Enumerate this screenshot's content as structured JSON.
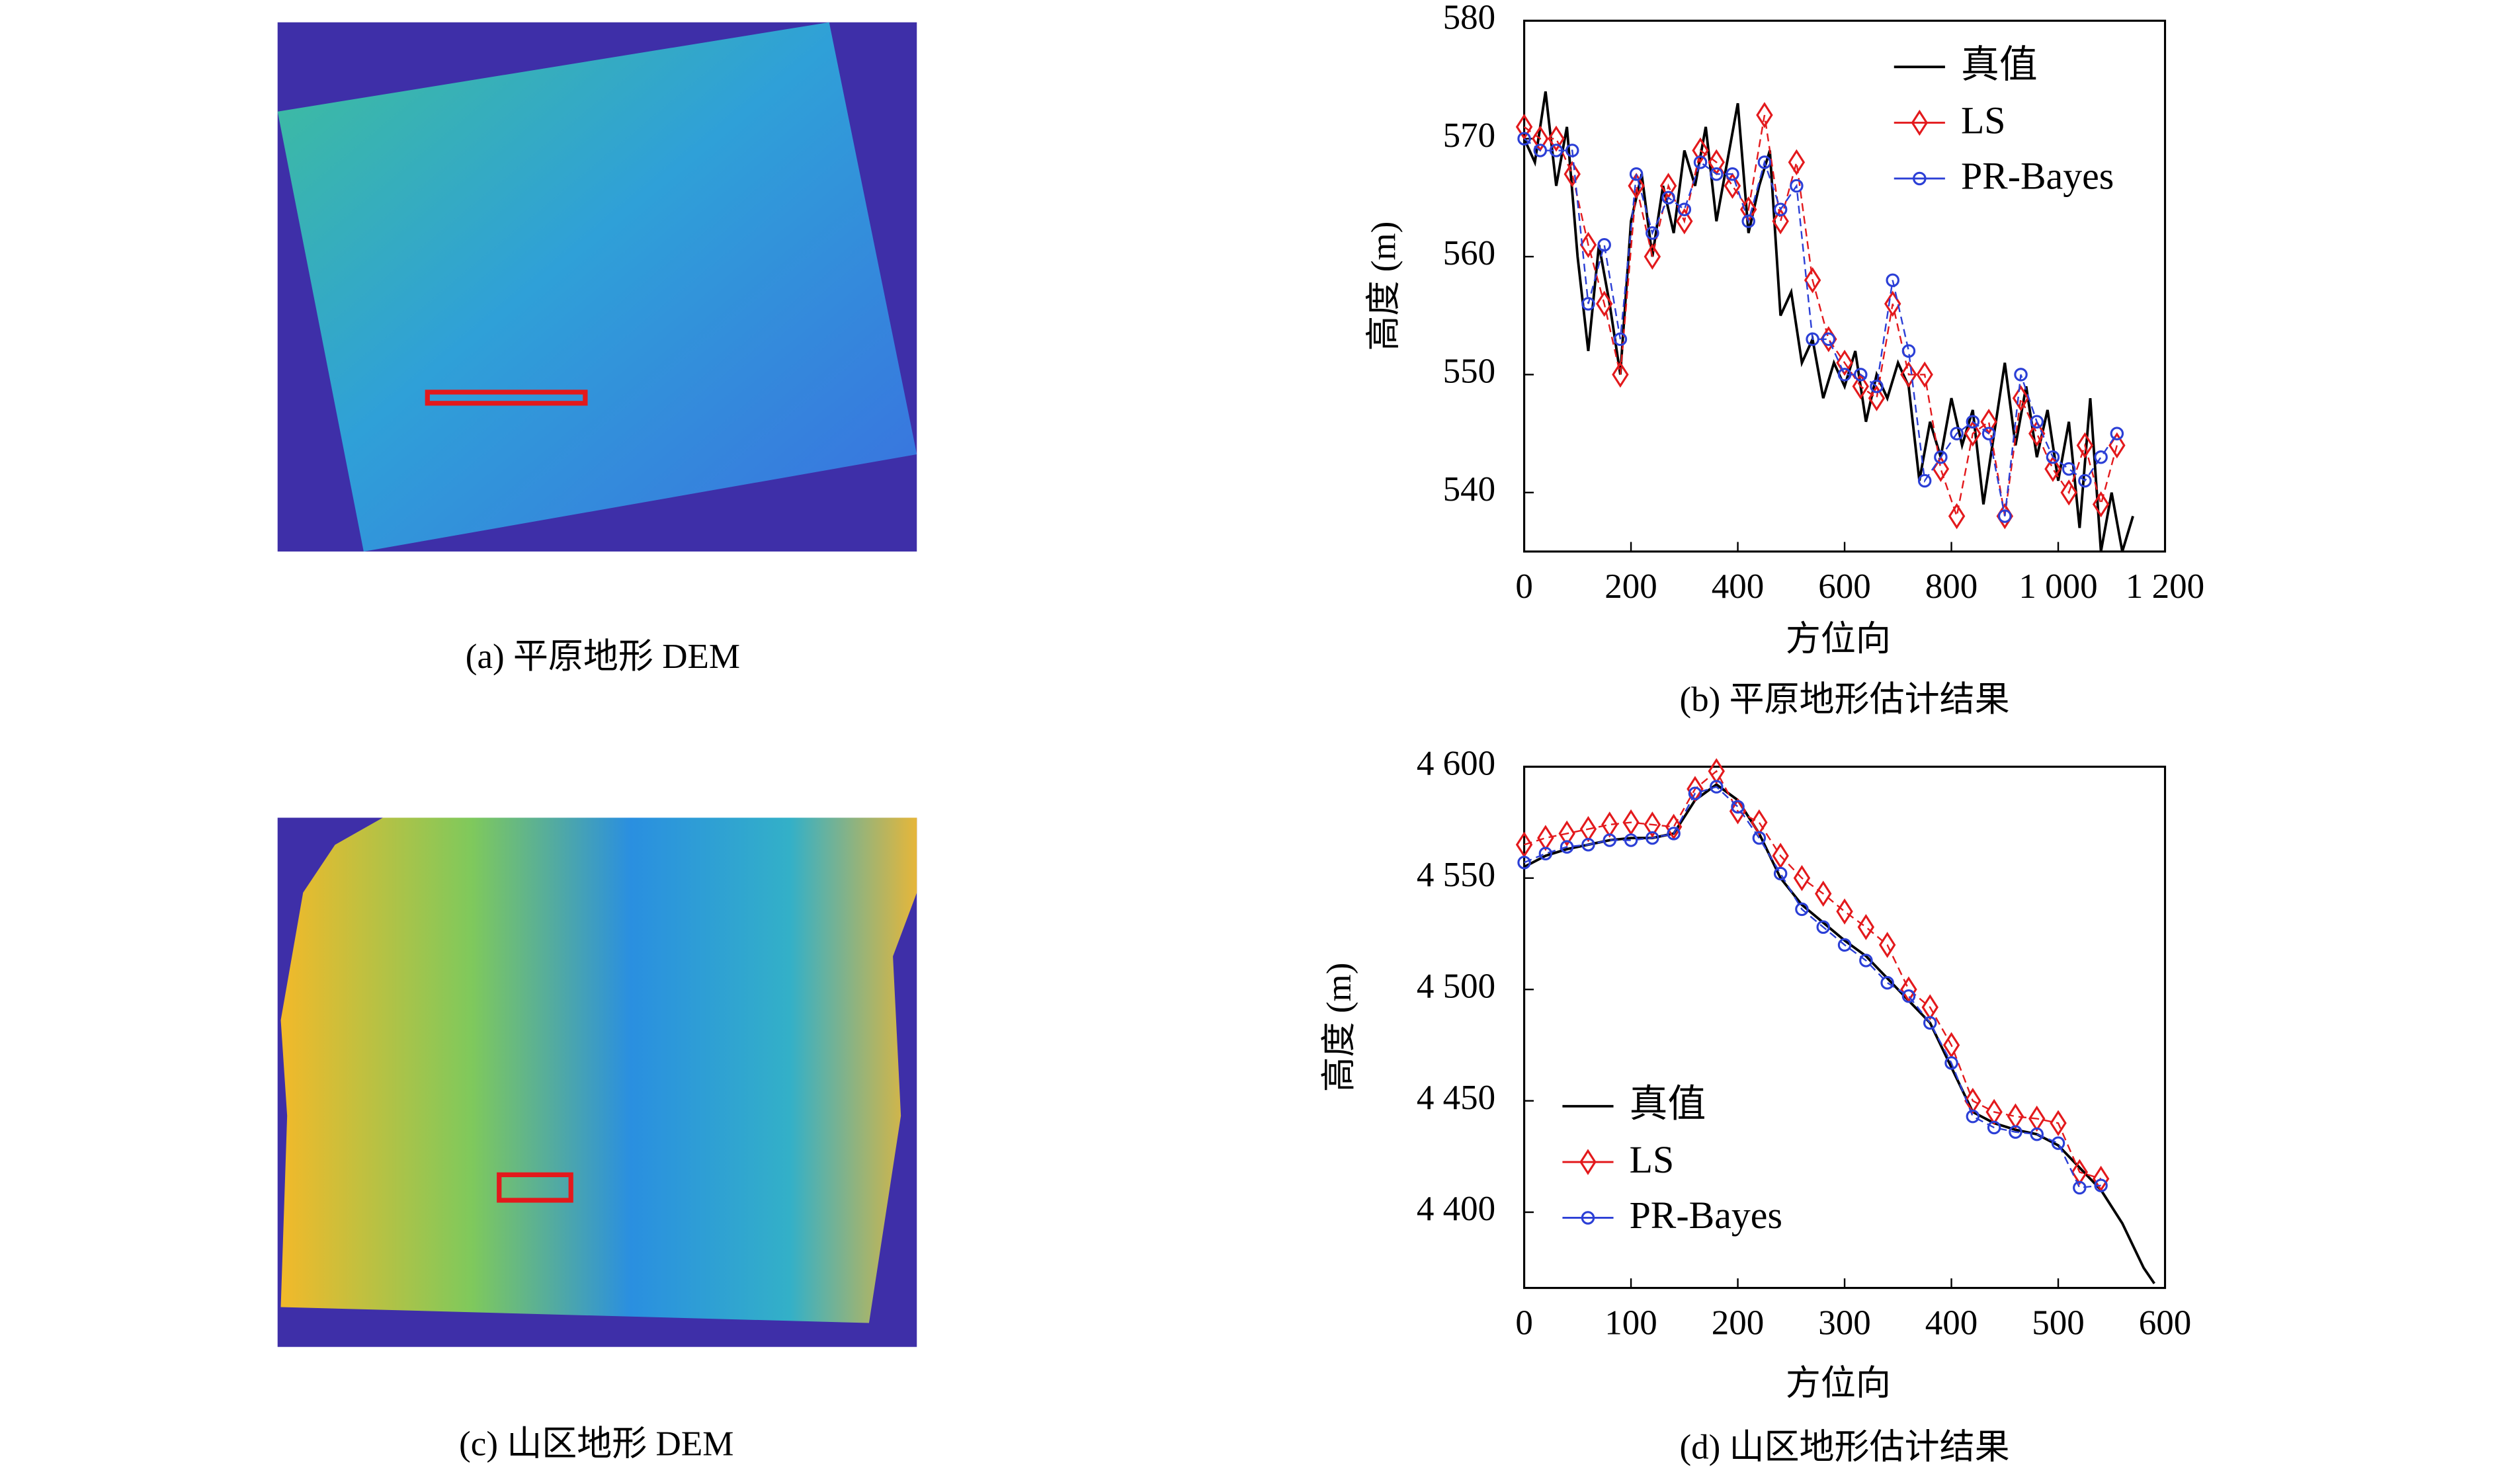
{
  "figures": [
    {
      "caption": "(a) 平原地形 DEM"
    },
    {
      "caption": "(c) 山区地形 DEM"
    }
  ],
  "chart_data": [
    {
      "type": "line",
      "title": "(b) 平原地形估计结果",
      "x_label": "方位向",
      "y_label": "高度 (m)",
      "xlim": [
        0,
        1200
      ],
      "ylim": [
        535,
        580
      ],
      "xticks": [
        0,
        200,
        400,
        600,
        800,
        {
          "value": 1000,
          "label": "1 000"
        },
        {
          "value": 1200,
          "label": "1 200"
        }
      ],
      "yticks": [
        540,
        550,
        560,
        570,
        580
      ],
      "legend": "upper right",
      "series": [
        {
          "name": "真值",
          "color": "#000000",
          "marker": "none",
          "linestyle": "solid",
          "x": [
            0,
            20,
            40,
            60,
            80,
            100,
            120,
            140,
            160,
            180,
            200,
            220,
            240,
            260,
            280,
            300,
            320,
            340,
            360,
            380,
            400,
            420,
            440,
            460,
            480,
            500,
            520,
            540,
            560,
            580,
            600,
            620,
            640,
            660,
            680,
            700,
            720,
            740,
            760,
            780,
            800,
            820,
            840,
            860,
            880,
            900,
            920,
            940,
            960,
            980,
            1000,
            1020,
            1040,
            1060,
            1080,
            1100,
            1120,
            1140
          ],
          "values": [
            570,
            568,
            574,
            566,
            571,
            560,
            552,
            561,
            556,
            550,
            563,
            567,
            560,
            566,
            562,
            569,
            566,
            571,
            563,
            568,
            573,
            562,
            566,
            569,
            555,
            557,
            551,
            553,
            548,
            551,
            549,
            552,
            546,
            550,
            548,
            551,
            549,
            541,
            546,
            543,
            548,
            544,
            547,
            539,
            545,
            551,
            544,
            549,
            543,
            547,
            541,
            546,
            537,
            548,
            535,
            540,
            535,
            538
          ]
        },
        {
          "name": "LS",
          "color": "#e3191c",
          "marker": "diamond",
          "linestyle": "dashed",
          "x": [
            0,
            30,
            60,
            90,
            120,
            150,
            180,
            210,
            240,
            270,
            300,
            330,
            360,
            390,
            420,
            450,
            480,
            510,
            540,
            570,
            600,
            630,
            660,
            690,
            720,
            750,
            780,
            810,
            840,
            870,
            900,
            930,
            960,
            990,
            1020,
            1050,
            1080,
            1110
          ],
          "values": [
            571,
            570,
            570,
            567,
            561,
            556,
            550,
            566,
            560,
            566,
            563,
            569,
            568,
            566,
            564,
            572,
            563,
            568,
            558,
            553,
            551,
            549,
            548,
            556,
            550,
            550,
            542,
            538,
            545,
            546,
            538,
            548,
            545,
            542,
            540,
            544,
            539,
            544
          ]
        },
        {
          "name": "PR-Bayes",
          "color": "#2b3fd6",
          "marker": "circle",
          "linestyle": "dashed",
          "x": [
            0,
            30,
            60,
            90,
            120,
            150,
            180,
            210,
            240,
            270,
            300,
            330,
            360,
            390,
            420,
            450,
            480,
            510,
            540,
            570,
            600,
            630,
            660,
            690,
            720,
            750,
            780,
            810,
            840,
            870,
            900,
            930,
            960,
            990,
            1020,
            1050,
            1080,
            1110
          ],
          "values": [
            570,
            569,
            569,
            569,
            556,
            561,
            553,
            567,
            562,
            565,
            564,
            568,
            567,
            567,
            563,
            568,
            564,
            566,
            553,
            553,
            550,
            550,
            549,
            558,
            552,
            541,
            543,
            545,
            546,
            545,
            538,
            550,
            546,
            543,
            542,
            541,
            543,
            545
          ]
        }
      ]
    },
    {
      "type": "line",
      "title": "(d) 山区地形估计结果",
      "x_label": "方位向",
      "y_label": "高度 (m)",
      "xlim": [
        0,
        600
      ],
      "ylim": [
        4366,
        4600
      ],
      "xticks": [
        0,
        100,
        200,
        300,
        400,
        500,
        600
      ],
      "yticks": [
        {
          "value": 4400,
          "label": "4 400"
        },
        {
          "value": 4450,
          "label": "4 450"
        },
        {
          "value": 4500,
          "label": "4 500"
        },
        {
          "value": 4550,
          "label": "4 550"
        },
        {
          "value": 4600,
          "label": "4 600"
        }
      ],
      "legend": "lower left",
      "series": [
        {
          "name": "真值",
          "color": "#000000",
          "marker": "none",
          "linestyle": "solid",
          "x": [
            0,
            20,
            40,
            60,
            80,
            100,
            120,
            140,
            160,
            180,
            200,
            220,
            240,
            260,
            280,
            300,
            320,
            340,
            360,
            380,
            400,
            420,
            440,
            460,
            480,
            500,
            520,
            540,
            560,
            580,
            590
          ],
          "values": [
            4555,
            4560,
            4563,
            4565,
            4567,
            4568,
            4568,
            4570,
            4585,
            4592,
            4585,
            4570,
            4550,
            4538,
            4530,
            4522,
            4515,
            4505,
            4495,
            4485,
            4465,
            4445,
            4440,
            4437,
            4435,
            4430,
            4420,
            4410,
            4395,
            4375,
            4368
          ]
        },
        {
          "name": "LS",
          "color": "#e3191c",
          "marker": "diamond",
          "linestyle": "dashed",
          "x": [
            0,
            20,
            40,
            60,
            80,
            100,
            120,
            140,
            160,
            180,
            200,
            220,
            240,
            260,
            280,
            300,
            320,
            340,
            360,
            380,
            400,
            420,
            440,
            460,
            480,
            500,
            520,
            540
          ],
          "values": [
            4565,
            4568,
            4570,
            4572,
            4574,
            4575,
            4574,
            4573,
            4590,
            4598,
            4580,
            4575,
            4560,
            4550,
            4543,
            4535,
            4528,
            4520,
            4500,
            4492,
            4475,
            4450,
            4445,
            4443,
            4442,
            4440,
            4418,
            4415
          ]
        },
        {
          "name": "PR-Bayes",
          "color": "#2b3fd6",
          "marker": "circle",
          "linestyle": "dashed",
          "x": [
            0,
            20,
            40,
            60,
            80,
            100,
            120,
            140,
            160,
            180,
            200,
            220,
            240,
            260,
            280,
            300,
            320,
            340,
            360,
            380,
            400,
            420,
            440,
            460,
            480,
            500,
            520,
            540
          ],
          "values": [
            4557,
            4561,
            4564,
            4565,
            4567,
            4567,
            4568,
            4570,
            4588,
            4591,
            4582,
            4568,
            4552,
            4536,
            4528,
            4520,
            4513,
            4503,
            4497,
            4485,
            4467,
            4443,
            4438,
            4436,
            4435,
            4431,
            4411,
            4412
          ]
        }
      ]
    }
  ]
}
